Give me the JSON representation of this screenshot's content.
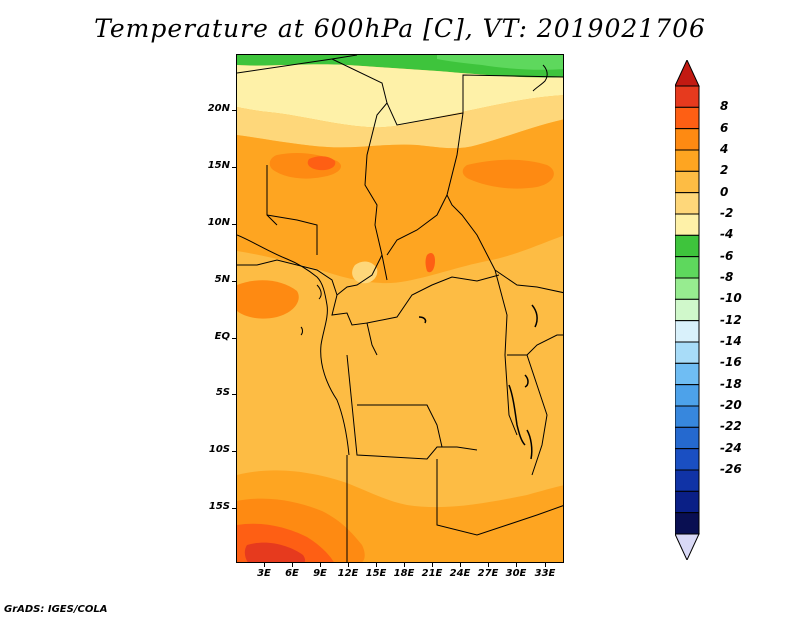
{
  "title": "Temperature at 600hPa [C], VT: 2019021706",
  "credit": "GrADS: IGES/COLA",
  "lat_labels": [
    "20N",
    "15N",
    "10N",
    "5N",
    "EQ",
    "5S",
    "10S",
    "15S"
  ],
  "lon_labels": [
    "3E",
    "6E",
    "9E",
    "12E",
    "15E",
    "18E",
    "21E",
    "24E",
    "27E",
    "30E",
    "33E"
  ],
  "colorbar": {
    "labels": [
      "8",
      "6",
      "4",
      "2",
      "0",
      "-2",
      "-4",
      "-6",
      "-8",
      "-10",
      "-12",
      "-14",
      "-16",
      "-18",
      "-20",
      "-22",
      "-24",
      "-26"
    ],
    "colors": [
      "#e63a1e",
      "#fe5f14",
      "#fe8a12",
      "#fea521",
      "#fdbc44",
      "#fed77a",
      "#fef1a8",
      "#3ec43c",
      "#5ed85d",
      "#97ec90",
      "#d0f8cb",
      "#d9f1fb",
      "#a8dcf8",
      "#6fbdf3",
      "#4da2ea",
      "#3787dd",
      "#2569cf",
      "#1a4fc2",
      "#1033a6",
      "#0a1f86",
      "#090f52"
    ],
    "top_arrow_color": "#c21a12",
    "bottom_arrow_color": "#d9d9f6"
  },
  "map": {
    "colors": {
      "green": "#3ec43c",
      "light_green": "#5ed85d",
      "pale_yellow": "#fef1a8",
      "light_yellow": "#fed77a",
      "light_orange": "#fdbc44",
      "orange": "#fea521",
      "dark_orange": "#fe8a12",
      "red_orange": "#fe5f14",
      "red": "#e63a1e"
    }
  }
}
